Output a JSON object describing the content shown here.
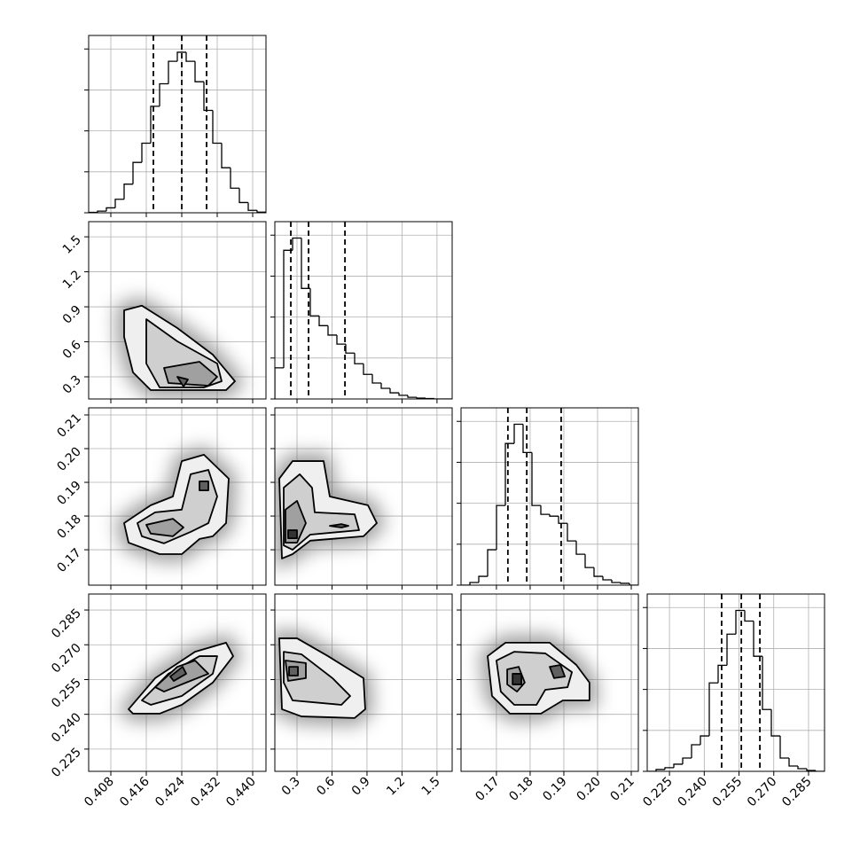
{
  "chart_data": {
    "type": "corner",
    "grid": true,
    "parameters": [
      {
        "lim": [
          0.403,
          0.443
        ],
        "ticks": [
          0.408,
          0.416,
          0.424,
          0.432,
          {
            "value": 0.44,
            "label": "0.440"
          }
        ],
        "quantiles": [
          0.4176,
          0.424,
          0.4296
        ],
        "hist": {
          "ylim": [
            0,
            4330
          ],
          "yticks": [
            0,
            1000,
            2000,
            3000,
            4000
          ],
          "bins": [
            0.403,
            0.405,
            0.407,
            0.409,
            0.411,
            0.413,
            0.415,
            0.417,
            0.419,
            0.421,
            0.423,
            0.425,
            0.427,
            0.429,
            0.431,
            0.433,
            0.435,
            0.437,
            0.439,
            0.441,
            0.443
          ],
          "counts": [
            10,
            40,
            120,
            330,
            700,
            1230,
            1700,
            2600,
            3150,
            3700,
            3920,
            3700,
            3200,
            2500,
            1700,
            1100,
            600,
            250,
            60,
            15
          ]
        }
      },
      {
        "lim": [
          0.11,
          1.63
        ],
        "ticks": [
          0.3,
          0.6,
          0.9,
          1.2,
          1.5
        ],
        "quantiles": [
          0.247,
          0.399,
          0.711
        ],
        "hist": {
          "ylim": [
            0,
            4330
          ],
          "yticks": [
            0,
            1000,
            2000,
            3000,
            4000
          ],
          "bins": [
            0.11,
            0.186,
            0.262,
            0.338,
            0.414,
            0.49,
            0.566,
            0.642,
            0.718,
            0.794,
            0.87,
            0.946,
            1.022,
            1.098,
            1.174,
            1.25,
            1.326,
            1.402,
            1.478,
            1.554,
            1.63
          ],
          "counts": [
            760,
            3630,
            3930,
            2700,
            2030,
            1790,
            1560,
            1340,
            1120,
            860,
            600,
            390,
            260,
            150,
            90,
            40,
            20,
            10,
            0,
            0
          ]
        }
      },
      {
        "lim": [
          0.1595,
          0.2121
        ],
        "ticks": [
          0.17,
          0.18,
          0.19,
          {
            "value": 0.2,
            "label": "0.20"
          },
          0.21
        ],
        "quantiles": [
          0.1734,
          0.179,
          0.1892
        ],
        "hist": {
          "ylim": [
            0,
            4330
          ],
          "yticks": [
            0,
            1000,
            2000,
            3000,
            4000
          ],
          "bins": [
            0.1595,
            0.16213,
            0.16476,
            0.16739,
            0.17002,
            0.17265,
            0.17528,
            0.17791,
            0.18054,
            0.18317,
            0.1858,
            0.18843,
            0.19106,
            0.19369,
            0.19632,
            0.19895,
            0.20158,
            0.20421,
            0.20684,
            0.20947,
            0.2121
          ],
          "counts": [
            0,
            65,
            215,
            865,
            1945,
            3460,
            3930,
            3240,
            1945,
            1730,
            1685,
            1510,
            1080,
            755,
            430,
            215,
            130,
            65,
            45,
            0
          ]
        }
      },
      {
        "lim": [
          0.2154,
          0.2919
        ],
        "ticks": [
          0.225,
          {
            "value": 0.24,
            "label": "0.240"
          },
          0.255,
          {
            "value": 0.27,
            "label": "0.270"
          },
          0.285
        ],
        "quantiles": [
          0.2475,
          0.256,
          0.264
        ],
        "hist": {
          "ylim": [
            0,
            4330
          ],
          "yticks": [
            0,
            1000,
            2000,
            3000,
            4000
          ],
          "bins": [
            0.2154,
            0.219225,
            0.22305,
            0.226875,
            0.2307,
            0.234525,
            0.23835,
            0.242175,
            0.246,
            0.249825,
            0.25365,
            0.257475,
            0.2613,
            0.265125,
            0.26895,
            0.272775,
            0.2766,
            0.280425,
            0.28425,
            0.288075,
            0.2919
          ],
          "counts": [
            0,
            45,
            90,
            175,
            325,
            650,
            865,
            2160,
            2590,
            3350,
            3930,
            3670,
            2810,
            1510,
            865,
            325,
            130,
            65,
            20,
            0
          ]
        }
      }
    ],
    "contours": [
      [
        [
          {
            "x": [
              0.411,
              0.415,
              0.423,
              0.431,
              0.436,
              0.434,
              0.417,
              0.413,
              0.411
            ],
            "y": [
              0.87,
              0.91,
              0.718,
              0.49,
              0.262,
              0.186,
              0.186,
              0.338,
              0.642
            ]
          },
          {
            "x": [
              0.416,
              0.423,
              0.432,
              0.433,
              0.429,
              0.419,
              0.416
            ],
            "y": [
              0.794,
              0.604,
              0.414,
              0.262,
              0.209,
              0.209,
              0.414
            ]
          },
          {
            "x": [
              0.42,
              0.428,
              0.432,
              0.43,
              0.421
            ],
            "y": [
              0.376,
              0.429,
              0.3,
              0.224,
              0.247
            ]
          },
          {
            "x": [
              0.423,
              0.4254,
              0.4244
            ],
            "y": [
              0.3,
              0.277,
              0.216
            ]
          }
        ]
      ],
      [
        [
          {
            "x": [
              0.411,
              0.417,
              0.422,
              0.424,
              0.429,
              0.4346,
              0.434,
              0.431,
              0.428,
              0.424,
              0.419,
              0.412
            ],
            "y": [
              0.1779,
              0.1832,
              0.1858,
              0.1963,
              0.1982,
              0.1911,
              0.1779,
              0.174,
              0.1732,
              0.1687,
              0.1687,
              0.1721
            ]
          },
          {
            "x": [
              0.414,
              0.418,
              0.424,
              0.426,
              0.43,
              0.432,
              0.43,
              0.426,
              0.42,
              0.415
            ],
            "y": [
              0.1779,
              0.1811,
              0.1819,
              0.1924,
              0.1937,
              0.1858,
              0.1779,
              0.1753,
              0.1719,
              0.174
            ]
          },
          {
            "x": [
              0.416,
              0.422,
              0.4244,
              0.422,
              0.417
            ],
            "y": [
              0.1774,
              0.1792,
              0.1766,
              0.174,
              0.1748
            ]
          },
          {
            "x": [
              0.428,
              0.43,
              0.43,
              0.428
            ],
            "y": [
              0.1903,
              0.1903,
              0.1876,
              0.1876
            ]
          }
        ],
        [
          {
            "x": [
              0.148,
              0.262,
              0.528,
              0.581,
              0.908,
              0.984,
              0.87,
              0.414,
              0.262,
              0.171
            ],
            "y": [
              0.1911,
              0.1963,
              0.1963,
              0.1858,
              0.1832,
              0.1779,
              0.174,
              0.1727,
              0.1687,
              0.1674
            ]
          },
          {
            "x": [
              0.186,
              0.323,
              0.429,
              0.452,
              0.794,
              0.832,
              0.414,
              0.262,
              0.186
            ],
            "y": [
              0.1884,
              0.1924,
              0.1884,
              0.1811,
              0.1805,
              0.1758,
              0.1745,
              0.17,
              0.1713
            ]
          },
          {
            "x": [
              0.201,
              0.3,
              0.376,
              0.3,
              0.201
            ],
            "y": [
              0.1819,
              0.1845,
              0.1779,
              0.1721,
              0.1721
            ]
          },
          {
            "x": [
              0.581,
              0.68,
              0.741,
              0.68
            ],
            "y": [
              0.1771,
              0.1776,
              0.1771,
              0.1766
            ]
          },
          {
            "x": [
              0.224,
              0.3,
              0.3,
              0.224
            ],
            "y": [
              0.1758,
              0.1758,
              0.1734,
              0.1734
            ]
          }
        ]
      ],
      [
        [
          {
            "x": [
              0.412,
              0.418,
              0.427,
              0.434,
              0.4356,
              0.431,
              0.424,
              0.419,
              0.413
            ],
            "y": [
              0.2422,
              0.2556,
              0.267,
              0.2709,
              0.2651,
              0.2537,
              0.2441,
              0.2403,
              0.2403
            ]
          },
          {
            "x": [
              0.415,
              0.421,
              0.428,
              0.432,
              0.431,
              0.424,
              0.417
            ],
            "y": [
              0.246,
              0.2575,
              0.2651,
              0.2651,
              0.2575,
              0.2479,
              0.2441
            ]
          },
          {
            "x": [
              0.418,
              0.423,
              0.427,
              0.43,
              0.425,
              0.42
            ],
            "y": [
              0.2517,
              0.2605,
              0.2632,
              0.2575,
              0.2537,
              0.2498
            ]
          },
          {
            "x": [
              0.4214,
              0.4242,
              0.425,
              0.4222
            ],
            "y": [
              0.2563,
              0.2605,
              0.2575,
              0.2544
            ]
          }
        ],
        [
          {
            "x": [
              0.148,
              0.3,
              0.566,
              0.87,
              0.885,
              0.794,
              0.338,
              0.171
            ],
            "y": [
              0.2728,
              0.2728,
              0.2651,
              0.2556,
              0.2422,
              0.2384,
              0.2391,
              0.2422
            ]
          },
          {
            "x": [
              0.186,
              0.338,
              0.604,
              0.756,
              0.68,
              0.262,
              0.186
            ],
            "y": [
              0.267,
              0.2659,
              0.2556,
              0.2479,
              0.2441,
              0.246,
              0.2537
            ]
          },
          {
            "x": [
              0.201,
              0.376,
              0.376,
              0.224
            ],
            "y": [
              0.2632,
              0.2621,
              0.2556,
              0.2544
            ]
          },
          {
            "x": [
              0.232,
              0.308,
              0.308,
              0.232
            ],
            "y": [
              0.2605,
              0.2605,
              0.2567,
              0.2567
            ]
          }
        ],
        [
          {
            "x": [
              0.1674,
              0.1727,
              0.1858,
              0.1937,
              0.1976,
              0.1976,
              0.1897,
              0.1832,
              0.174,
              0.1687
            ],
            "y": [
              0.2651,
              0.2709,
              0.2709,
              0.2613,
              0.2537,
              0.246,
              0.246,
              0.2403,
              0.2403,
              0.2479
            ]
          },
          {
            "x": [
              0.17,
              0.1753,
              0.1845,
              0.1924,
              0.1911,
              0.1845,
              0.1819,
              0.1753,
              0.1713
            ],
            "y": [
              0.2632,
              0.267,
              0.2663,
              0.2582,
              0.2517,
              0.2506,
              0.2441,
              0.2441,
              0.2498
            ]
          },
          {
            "x": [
              0.1732,
              0.1766,
              0.1784,
              0.1761,
              0.1732
            ],
            "y": [
              0.2594,
              0.2605,
              0.2537,
              0.2498,
              0.2529
            ]
          },
          {
            "x": [
              0.1858,
              0.189,
              0.1903,
              0.1871
            ],
            "y": [
              0.2605,
              0.2613,
              0.2563,
              0.2556
            ]
          },
          {
            "x": [
              0.1748,
              0.1774,
              0.1774,
              0.1748
            ],
            "y": [
              0.2575,
              0.2575,
              0.2529,
              0.2529
            ]
          }
        ]
      ]
    ]
  }
}
